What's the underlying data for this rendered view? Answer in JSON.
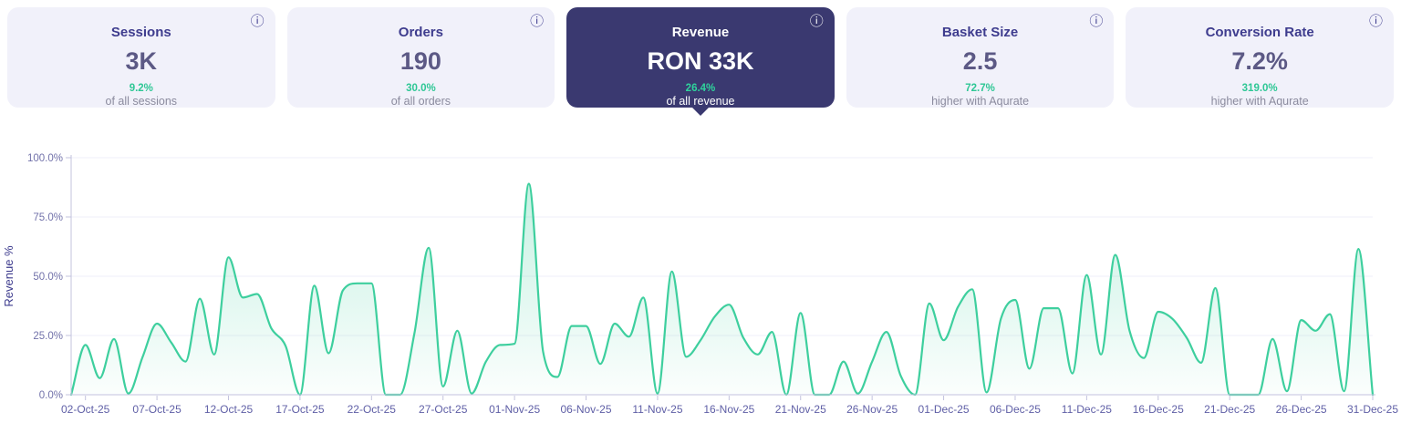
{
  "icons": {
    "info_glyph": "ⓘ"
  },
  "metrics": {
    "cards": [
      {
        "label": "Sessions",
        "value": "3K",
        "delta": "9.2%",
        "note": "of all sessions",
        "selected": false
      },
      {
        "label": "Orders",
        "value": "190",
        "delta": "30.0%",
        "note": "of all orders",
        "selected": false
      },
      {
        "label": "Revenue",
        "value": "RON 33K",
        "delta": "26.4%",
        "note": "of all revenue",
        "selected": true
      },
      {
        "label": "Basket Size",
        "value": "2.5",
        "delta": "72.7%",
        "note": "higher with Aqurate",
        "selected": false
      },
      {
        "label": "Conversion Rate",
        "value": "7.2%",
        "delta": "319.0%",
        "note": "higher with Aqurate",
        "selected": false
      }
    ]
  },
  "colors": {
    "green": "#2ec795",
    "line_green": "#3ecf9e",
    "card_bg": "#f1f1fa",
    "selected_bg": "#3a3970",
    "indigo": "#3e3c8e",
    "value_gray": "#5c5985",
    "muted": "#8b8b9e",
    "axis_line": "#c3c3de",
    "grid_line": "#efeff8",
    "y_tick_text": "#7272aa",
    "x_tick_text": "#5f5fa6"
  },
  "chart_data": {
    "type": "area",
    "ylabel": "Revenue %",
    "ylim": [
      0,
      100
    ],
    "grid": "horizontal",
    "start_date": "01-Oct-25",
    "x_tick_start_index": 1,
    "x_tick_step": 5,
    "x_tick_labels": [
      "02-Oct-25",
      "07-Oct-25",
      "12-Oct-25",
      "17-Oct-25",
      "22-Oct-25",
      "27-Oct-25",
      "01-Nov-25",
      "06-Nov-25",
      "11-Nov-25",
      "16-Nov-25",
      "21-Nov-25",
      "26-Nov-25",
      "01-Dec-25",
      "06-Dec-25",
      "11-Dec-25",
      "16-Dec-25",
      "21-Dec-25",
      "26-Dec-25",
      "31-Dec-25"
    ],
    "y_tick_labels": [
      "0.0%",
      "25.0%",
      "50.0%",
      "75.0%",
      "100.0%"
    ],
    "values": [
      0,
      21,
      7,
      23.5,
      0.5,
      16,
      30,
      22,
      14,
      40.5,
      17,
      58,
      41,
      42.5,
      28,
      20.5,
      0,
      46,
      17.5,
      44,
      47,
      47,
      0,
      0,
      26,
      62,
      3.5,
      27,
      0.5,
      14,
      21,
      21.5,
      89,
      18,
      7.5,
      29,
      29,
      13,
      30,
      24.5,
      41,
      0.5,
      52,
      16,
      23,
      33,
      38,
      24,
      17,
      26.5,
      0,
      34.5,
      0,
      0,
      14,
      0.5,
      14,
      26.5,
      8,
      0,
      38.5,
      23,
      37,
      44.5,
      1,
      32,
      40,
      11,
      36.5,
      36.5,
      9,
      50.5,
      17,
      59,
      27,
      15.5,
      35,
      32,
      24,
      13.5,
      45,
      0,
      0,
      0,
      23.5,
      1.5,
      31.5,
      27,
      34,
      1.5,
      61.5,
      0
    ]
  }
}
